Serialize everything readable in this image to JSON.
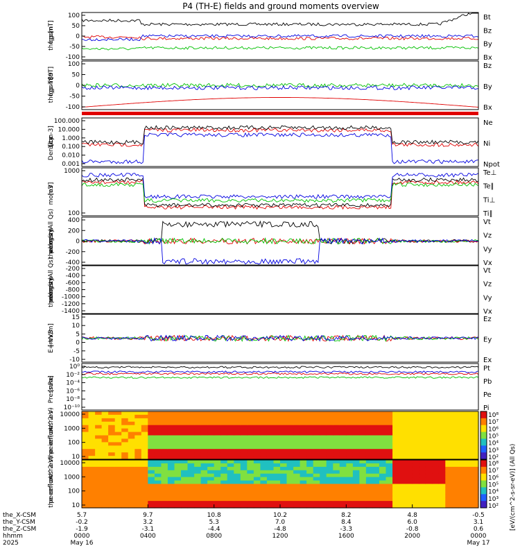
{
  "title": "P4 (TH-E) fields and ground moments overview",
  "chart_data": {
    "type": "line",
    "panels": [
      {
        "id": "fgs",
        "ylabel": [
          "the",
          "fgs",
          "gsm",
          "[nT]"
        ],
        "ticks": [
          "100",
          "50",
          "0",
          "-50",
          "-100"
        ],
        "ylim": [
          -100,
          100
        ],
        "legend": [
          {
            "name": "Bt",
            "color": "#000000"
          },
          {
            "name": "Bz",
            "color": "#e00000"
          },
          {
            "name": "By",
            "color": "#00c000"
          },
          {
            "name": "Bx",
            "color": "#0000e0"
          }
        ]
      },
      {
        "id": "fgs_dev",
        "ylabel": [
          "the",
          "fgs",
          "gsm",
          "-T89",
          "[nT]"
        ],
        "ticks": [
          "100",
          "50",
          "0",
          "-50",
          "-100"
        ],
        "ylim": [
          -125,
          100
        ],
        "legend": [
          {
            "name": "Bz",
            "color": "#e00000"
          },
          {
            "name": "By",
            "color": "#00c000"
          },
          {
            "name": "Bx",
            "color": "#0000e0"
          }
        ]
      },
      {
        "id": "density",
        "ylabel": [
          "Density",
          "1/cc",
          "[cm-3]"
        ],
        "ticks": [
          "100.000",
          "10.000",
          "1.000",
          "0.100",
          "0.010",
          "0.001"
        ],
        "ylim": [
          0.001,
          100
        ],
        "log": true,
        "legend": [
          {
            "name": "Ne",
            "color": "#e00000"
          },
          {
            "name": "Ni",
            "color": "#000000"
          },
          {
            "name": "Npot",
            "color": "#0000e0"
          }
        ]
      },
      {
        "id": "temp",
        "ylabel": [
          "mom3",
          "[eV]"
        ],
        "ticks": [
          "1000",
          "100"
        ],
        "log": true,
        "legend": [
          {
            "name": "Te⊥",
            "color": "#e00000"
          },
          {
            "name": "Te∥",
            "color": "#000000"
          },
          {
            "name": "Ti⊥",
            "color": "#0000e0"
          },
          {
            "name": "Ti∥",
            "color": "#00c000"
          }
        ]
      },
      {
        "id": "peir_vel",
        "ylabel": [
          "the",
          "peir",
          "velocity",
          "gsm",
          "km/s (All Qs)"
        ],
        "ticks": [
          "400",
          "200",
          "0",
          "-200",
          "-400"
        ],
        "ylim": [
          -450,
          450
        ],
        "legend": [
          {
            "name": "Vt",
            "color": "#000000"
          },
          {
            "name": "Vz",
            "color": "#e00000"
          },
          {
            "name": "Vy",
            "color": "#00c000"
          },
          {
            "name": "Vx",
            "color": "#0000e0"
          }
        ]
      },
      {
        "id": "peer_vel",
        "ylabel": [
          "the",
          "peer",
          "velocity",
          "gsm",
          "km/s (All Qs)"
        ],
        "ticks": [
          "-200",
          "-400",
          "-600",
          "-800",
          "-1000",
          "-1200",
          "-1400"
        ],
        "ylim": [
          -1500,
          -150
        ],
        "legend": [
          {
            "name": "Vt",
            "color": "#000000"
          },
          {
            "name": "Vz",
            "color": "#e00000"
          },
          {
            "name": "Vy",
            "color": "#00c000"
          },
          {
            "name": "Vx",
            "color": "#0000e0"
          }
        ]
      },
      {
        "id": "efield",
        "ylabel": [
          "E=-VxB",
          "[mV/m]"
        ],
        "ticks": [
          "15",
          "10",
          "5",
          "0",
          "-5",
          "-10"
        ],
        "ylim": [
          -12,
          16
        ],
        "legend": [
          {
            "name": "Ez",
            "color": "#e00000"
          },
          {
            "name": "Ey",
            "color": "#00c000"
          },
          {
            "name": "Ex",
            "color": "#0000e0"
          }
        ]
      },
      {
        "id": "pressure",
        "ylabel": [
          "Pressure",
          "[nPa]"
        ],
        "ticks": [
          "10⁰",
          "10⁻²",
          "10⁻⁴",
          "10⁻⁶",
          "10⁻⁸",
          "10⁻¹⁰"
        ],
        "log": true,
        "legend": [
          {
            "name": "Pt",
            "color": "#000000"
          },
          {
            "name": "Pb",
            "color": "#e00000"
          },
          {
            "name": "Pe",
            "color": "#00c000"
          },
          {
            "name": "Pi",
            "color": "#0000e0"
          }
        ]
      },
      {
        "id": "peir_spec",
        "type": "heatmap",
        "ylabel": [
          "the",
          "peir",
          "en",
          "eflux",
          "eV",
          "(cm^2-s-",
          "sr-eV)"
        ],
        "ticks": [
          "10000",
          "1000",
          "100",
          "10"
        ]
      },
      {
        "id": "peer_spec",
        "type": "heatmap",
        "ylabel": [
          "the",
          "peer",
          "en",
          "eflux",
          "eV",
          "(cm^2-s-",
          "sr-eV)"
        ],
        "ticks": [
          "10000",
          "1000",
          "100",
          "10"
        ]
      }
    ],
    "colorbar": {
      "label": "[eV/(cm^2-s-sr-eV)] (All Qs)",
      "ticks": [
        "10⁸",
        "10⁷",
        "10⁶",
        "10⁵",
        "10⁴",
        "10³",
        "10²",
        "10¹"
      ]
    },
    "xaxis": {
      "rows": [
        {
          "label": "the_X-CSM",
          "values": [
            "5.7",
            "9.7",
            "10.8",
            "10.2",
            "8.2",
            "4.8",
            "-0.5"
          ]
        },
        {
          "label": "the_Y-CSM",
          "values": [
            "-0.2",
            "3.2",
            "5.3",
            "7.0",
            "8.4",
            "6.0",
            "3.1"
          ]
        },
        {
          "label": "the_Z-CSM",
          "values": [
            "-1.9",
            "-3.1",
            "-4.4",
            "-4.8",
            "-3.3",
            "-0.8",
            "0.6"
          ]
        },
        {
          "label": "hhmm",
          "values": [
            "0000",
            "0400",
            "0800",
            "1200",
            "1600",
            "2000",
            "0000"
          ]
        },
        {
          "label": "2025",
          "values": [
            "May 16",
            "",
            "",
            "",
            "",
            "",
            "May 17"
          ]
        }
      ]
    }
  }
}
